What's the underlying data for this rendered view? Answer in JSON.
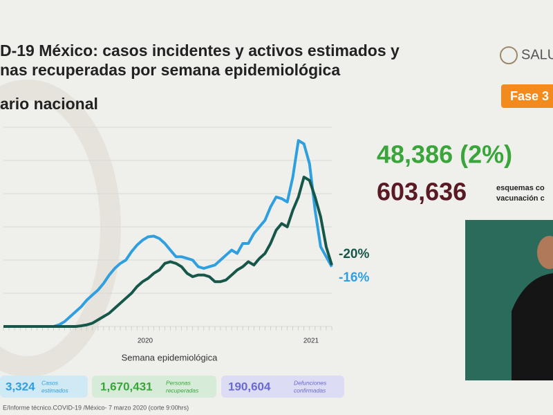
{
  "header": {
    "title_lines": [
      "D-19 México: casos incidentes y activos estimados y",
      "nas recuperadas por semana epidemiológica"
    ],
    "subtitle": "ario nacional",
    "logo": "SALU",
    "phase": "Fase 3"
  },
  "chart_data": {
    "type": "line",
    "x_label": "Semana epidemiológica",
    "categories": [
      null,
      null,
      null,
      null,
      null,
      null,
      null,
      null,
      null,
      null,
      null,
      null,
      null,
      null,
      null,
      null,
      null,
      null,
      null,
      null,
      null,
      null,
      null,
      null,
      null,
      null,
      null,
      null,
      null,
      null,
      null,
      null,
      null,
      null,
      null,
      null,
      null,
      null,
      null,
      null,
      null,
      null,
      null,
      null,
      null,
      null,
      null,
      null,
      null,
      null,
      null,
      null,
      null,
      null,
      null,
      null,
      null,
      null,
      null,
      null
    ],
    "series": [
      {
        "color": "#2f9fe0",
        "values": [
          0,
          0,
          0,
          0,
          0,
          0,
          0,
          0,
          0,
          0,
          0.05,
          0.15,
          0.3,
          0.45,
          0.6,
          0.8,
          0.95,
          1.1,
          1.3,
          1.55,
          1.75,
          1.9,
          2.0,
          2.25,
          2.45,
          2.6,
          2.7,
          2.72,
          2.65,
          2.5,
          2.3,
          2.1,
          2.1,
          2.05,
          2.0,
          1.8,
          1.75,
          1.8,
          1.85,
          2.0,
          2.15,
          2.3,
          2.2,
          2.5,
          2.5,
          2.8,
          3.0,
          3.2,
          3.6,
          3.9,
          3.85,
          3.75,
          4.5,
          5.6,
          5.5,
          4.9,
          3.5,
          2.4,
          2.1,
          1.8
        ]
      },
      {
        "color": "#17574a",
        "values": [
          0,
          0,
          0,
          0,
          0,
          0,
          0,
          0,
          0,
          0,
          0,
          0,
          0,
          0,
          0.02,
          0.05,
          0.1,
          0.2,
          0.3,
          0.4,
          0.55,
          0.7,
          0.85,
          1.0,
          1.2,
          1.35,
          1.45,
          1.6,
          1.7,
          1.9,
          1.95,
          1.9,
          1.8,
          1.6,
          1.5,
          1.55,
          1.55,
          1.5,
          1.35,
          1.35,
          1.4,
          1.55,
          1.7,
          1.8,
          1.95,
          1.85,
          2.05,
          2.2,
          2.5,
          2.9,
          3.1,
          3.0,
          3.5,
          3.9,
          4.5,
          4.4,
          3.9,
          3.3,
          2.4,
          1.85
        ]
      }
    ],
    "ylim": [
      0,
      6
    ],
    "yticks": [
      0,
      1,
      2,
      3,
      4,
      5,
      6
    ],
    "grid": true,
    "annotations": {
      "year_1": "2020",
      "year_2": "2021",
      "change_1": "-20%",
      "change_2": "-16%"
    }
  },
  "stats": {
    "big_1": "48,386 (2%)",
    "big_2": "603,636",
    "note_lines": [
      "esquemas co",
      "vacunación c"
    ]
  },
  "footer_boxes": [
    {
      "value": "3,324",
      "label_lines": [
        "Casos",
        "estimados"
      ]
    },
    {
      "value": "1,670,431",
      "label_lines": [
        "Personas",
        "recuperadas"
      ]
    },
    {
      "value": "190,604",
      "label_lines": [
        "Defunciones",
        "confirmadas"
      ]
    }
  ],
  "source": "E/Informe técnico.COVID-19 /México- 7 marzo 2020 (corte 9:00hrs)"
}
